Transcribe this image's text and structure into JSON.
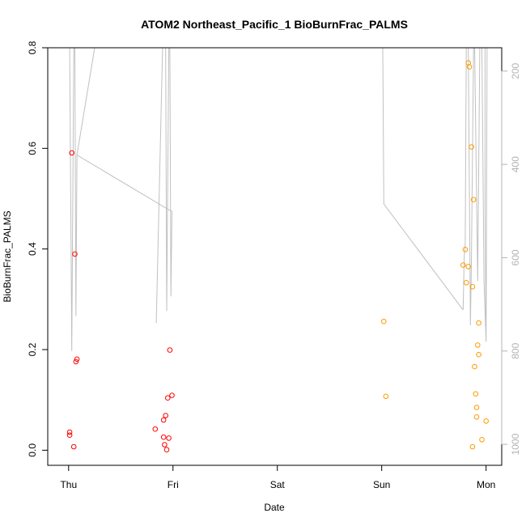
{
  "chart_data": {
    "type": "scatter",
    "title": "ATOM2 Northeast_Pacific_1 BioBurnFrac_PALMS",
    "xlabel": "Date",
    "ylabel": "BioBurnFrac_PALMS",
    "x_ticks": [
      {
        "label": "Thu",
        "value": 0
      },
      {
        "label": "Fri",
        "value": 1
      },
      {
        "label": "Sat",
        "value": 2
      },
      {
        "label": "Sun",
        "value": 3
      },
      {
        "label": "Mon",
        "value": 4
      }
    ],
    "xlim": [
      -0.2,
      4.15
    ],
    "ylim": [
      -0.03,
      0.8
    ],
    "y_ticks": [
      0.0,
      0.2,
      0.4,
      0.6,
      0.8
    ],
    "y2_ticks": [
      200,
      400,
      600,
      800,
      1000
    ],
    "y2lim": [
      1045,
      150
    ],
    "y2_color": "#b3b3b3",
    "grid": false,
    "series": [
      {
        "color": "#ff0000",
        "points": [
          {
            "x": 0.01,
            "y": 0.036
          },
          {
            "x": 0.01,
            "y": 0.03
          },
          {
            "x": 0.03,
            "y": 0.591
          },
          {
            "x": 0.05,
            "y": 0.007
          },
          {
            "x": 0.06,
            "y": 0.39
          },
          {
            "x": 0.07,
            "y": 0.176
          },
          {
            "x": 0.08,
            "y": 0.181
          },
          {
            "x": 0.83,
            "y": 0.042
          },
          {
            "x": 0.91,
            "y": 0.06
          },
          {
            "x": 0.91,
            "y": 0.026
          },
          {
            "x": 0.92,
            "y": 0.011
          },
          {
            "x": 0.93,
            "y": 0.069
          },
          {
            "x": 0.94,
            "y": 0.001
          },
          {
            "x": 0.95,
            "y": 0.104
          },
          {
            "x": 0.96,
            "y": 0.024
          },
          {
            "x": 0.97,
            "y": 0.199
          },
          {
            "x": 0.99,
            "y": 0.109
          }
        ]
      },
      {
        "color": "#ff9900",
        "points": [
          {
            "x": 3.02,
            "y": 0.256
          },
          {
            "x": 3.04,
            "y": 0.107
          },
          {
            "x": 3.78,
            "y": 0.368
          },
          {
            "x": 3.8,
            "y": 0.399
          },
          {
            "x": 3.81,
            "y": 0.333
          },
          {
            "x": 3.83,
            "y": 0.365
          },
          {
            "x": 3.83,
            "y": 0.77
          },
          {
            "x": 3.84,
            "y": 0.762
          },
          {
            "x": 3.86,
            "y": 0.603
          },
          {
            "x": 3.87,
            "y": 0.007
          },
          {
            "x": 3.87,
            "y": 0.325
          },
          {
            "x": 3.88,
            "y": 0.498
          },
          {
            "x": 3.89,
            "y": 0.166
          },
          {
            "x": 3.9,
            "y": 0.112
          },
          {
            "x": 3.91,
            "y": 0.085
          },
          {
            "x": 3.91,
            "y": 0.066
          },
          {
            "x": 3.92,
            "y": 0.209
          },
          {
            "x": 3.93,
            "y": 0.19
          },
          {
            "x": 3.93,
            "y": 0.253
          },
          {
            "x": 3.96,
            "y": 0.021
          },
          {
            "x": 4.0,
            "y": 0.058
          }
        ]
      }
    ],
    "pressure_track": {
      "color": "#c0c0c0",
      "segments": [
        [
          [
            0.01,
            150
          ],
          [
            0.03,
            800
          ],
          [
            0.05,
            150
          ],
          [
            0.06,
            150
          ],
          [
            0.07,
            725
          ],
          [
            0.08,
            380
          ],
          [
            0.25,
            150
          ]
        ],
        [
          [
            0.08,
            380
          ],
          [
            0.98,
            500
          ],
          [
            0.99,
            500
          ]
        ],
        [
          [
            0.84,
            740
          ],
          [
            0.9,
            150
          ],
          [
            0.93,
            150
          ],
          [
            0.94,
            714
          ],
          [
            0.96,
            150
          ],
          [
            0.97,
            150
          ],
          [
            0.98,
            683
          ],
          [
            0.99,
            500
          ]
        ],
        [
          [
            3.01,
            150
          ],
          [
            3.02,
            485
          ],
          [
            3.78,
            712
          ]
        ],
        [
          [
            3.78,
            712
          ],
          [
            3.79,
            600
          ],
          [
            3.8,
            570
          ],
          [
            3.81,
            150
          ],
          [
            3.83,
            150
          ],
          [
            3.85,
            745
          ],
          [
            3.86,
            600
          ],
          [
            3.88,
            150
          ],
          [
            3.89,
            150
          ],
          [
            3.92,
            650
          ],
          [
            3.94,
            150
          ],
          [
            3.96,
            150
          ],
          [
            3.98,
            650
          ],
          [
            4.0,
            780
          ],
          [
            3.99,
            500
          ],
          [
            3.99,
            150
          ],
          [
            4.01,
            150
          ],
          [
            4.0,
            780
          ]
        ]
      ]
    }
  }
}
